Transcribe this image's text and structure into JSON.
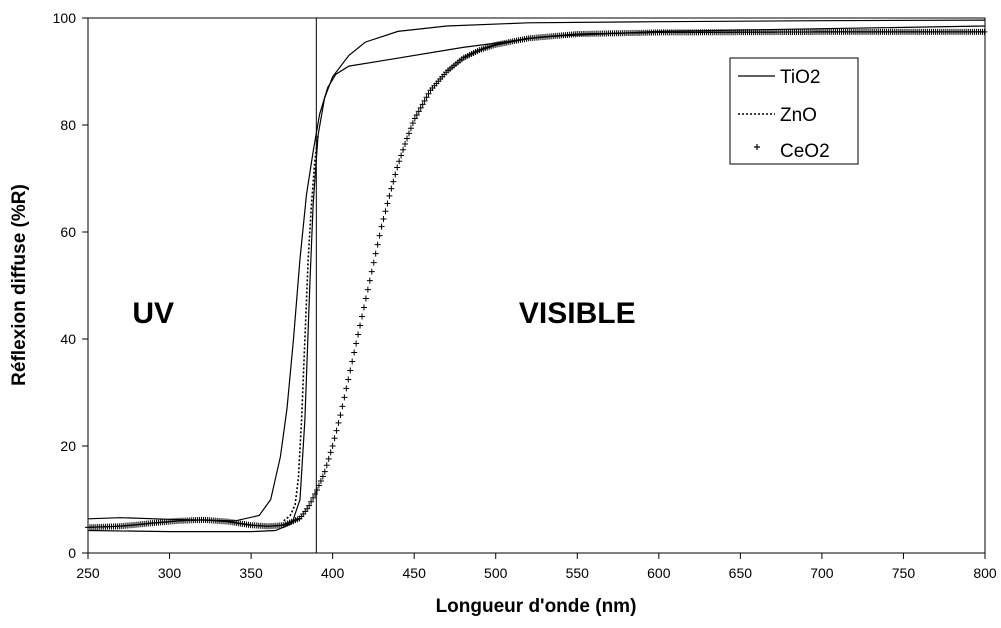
{
  "chart_data": {
    "type": "line",
    "title": "",
    "xlabel": "Longueur d'onde (nm)",
    "ylabel": "Réflexion diffuse (%R)",
    "xlim": [
      250,
      800
    ],
    "ylim": [
      0,
      100
    ],
    "x_ticks": [
      250,
      300,
      350,
      400,
      450,
      500,
      550,
      600,
      650,
      700,
      750,
      800
    ],
    "y_ticks": [
      0,
      20,
      40,
      60,
      80,
      100
    ],
    "grid": false,
    "legend_position": "top-right",
    "annotations": [
      {
        "text": "UV",
        "x": 290,
        "y": 43
      },
      {
        "text": "VISIBLE",
        "x": 550,
        "y": 43
      }
    ],
    "vertical_line_x": 390,
    "series": [
      {
        "name": "TiO2",
        "style": "solid",
        "points": [
          [
            250,
            6.4
          ],
          [
            270,
            6.6
          ],
          [
            300,
            6.3
          ],
          [
            340,
            6.0
          ],
          [
            355,
            7.0
          ],
          [
            362,
            10
          ],
          [
            368,
            18
          ],
          [
            372,
            27
          ],
          [
            376,
            40
          ],
          [
            380,
            55
          ],
          [
            384,
            67
          ],
          [
            388,
            75
          ],
          [
            392,
            82
          ],
          [
            397,
            87
          ],
          [
            402,
            89.5
          ],
          [
            410,
            91
          ],
          [
            430,
            92
          ],
          [
            480,
            94.5
          ],
          [
            530,
            96.5
          ],
          [
            600,
            97.5
          ],
          [
            700,
            98
          ],
          [
            800,
            98.5
          ]
        ]
      },
      {
        "name": "TiO2",
        "style": "solid",
        "points": [
          [
            250,
            4.2
          ],
          [
            300,
            4.0
          ],
          [
            350,
            4.0
          ],
          [
            365,
            4.2
          ],
          [
            375,
            5.5
          ],
          [
            380,
            10
          ],
          [
            383,
            25
          ],
          [
            386,
            50
          ],
          [
            388,
            65
          ],
          [
            391,
            78
          ],
          [
            395,
            85
          ],
          [
            400,
            89
          ],
          [
            410,
            93
          ],
          [
            420,
            95.5
          ],
          [
            440,
            97.5
          ],
          [
            470,
            98.5
          ],
          [
            520,
            99.1
          ],
          [
            600,
            99.3
          ],
          [
            700,
            99.5
          ],
          [
            800,
            99.6
          ]
        ]
      },
      {
        "name": "ZnO",
        "style": "dotted",
        "points": [
          [
            370,
            6.0
          ],
          [
            374,
            7.0
          ],
          [
            377,
            9
          ],
          [
            379,
            14
          ],
          [
            381,
            25
          ],
          [
            383,
            40
          ],
          [
            385,
            55
          ],
          [
            387,
            65
          ],
          [
            389,
            73
          ],
          [
            391,
            78
          ]
        ]
      },
      {
        "name": "CeO2",
        "style": "plus",
        "points": [
          [
            250,
            4.8
          ],
          [
            270,
            5.0
          ],
          [
            290,
            5.6
          ],
          [
            305,
            6.0
          ],
          [
            320,
            6.2
          ],
          [
            335,
            5.9
          ],
          [
            350,
            5.2
          ],
          [
            360,
            5.0
          ],
          [
            370,
            5.2
          ],
          [
            380,
            6.5
          ],
          [
            385,
            8.5
          ],
          [
            390,
            11.5
          ],
          [
            395,
            15
          ],
          [
            400,
            20
          ],
          [
            405,
            26
          ],
          [
            410,
            33
          ],
          [
            415,
            40
          ],
          [
            420,
            47
          ],
          [
            425,
            54
          ],
          [
            430,
            61
          ],
          [
            435,
            67
          ],
          [
            440,
            72.5
          ],
          [
            445,
            77
          ],
          [
            450,
            81
          ],
          [
            460,
            86.5
          ],
          [
            470,
            90
          ],
          [
            480,
            92.5
          ],
          [
            490,
            94
          ],
          [
            500,
            95
          ],
          [
            520,
            96.2
          ],
          [
            550,
            97
          ],
          [
            600,
            97.3
          ],
          [
            700,
            97.4
          ],
          [
            800,
            97.4
          ]
        ]
      }
    ]
  }
}
